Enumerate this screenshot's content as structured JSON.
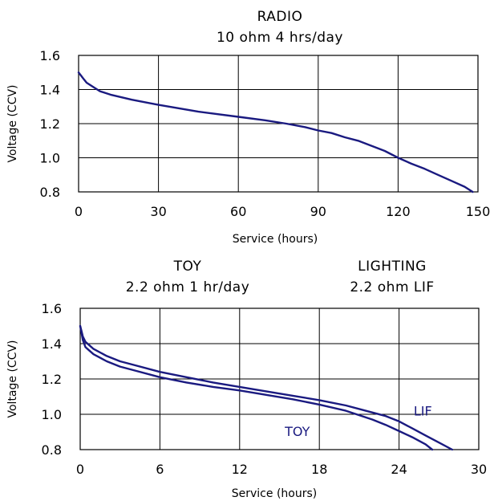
{
  "chart_data": [
    {
      "type": "line",
      "title_lines": [
        "RADIO",
        "10 ohm 4 hrs/day"
      ],
      "xlabel": "Service (hours)",
      "ylabel": "Voltage (CCV)",
      "xlim": [
        0,
        150
      ],
      "ylim": [
        0.8,
        1.6
      ],
      "xticks": [
        0,
        30,
        60,
        90,
        120,
        150
      ],
      "yticks": [
        0.8,
        1.0,
        1.2,
        1.4,
        1.6
      ],
      "ytick_labels": [
        "0.8",
        "1.0",
        "1.2",
        "1.4",
        "1.6"
      ],
      "grid": true,
      "line_color": "#1a1a80",
      "series": [
        {
          "x": [
            0,
            1,
            2,
            3,
            5,
            8,
            12,
            20,
            30,
            45,
            60,
            70,
            78,
            85,
            90,
            95,
            100,
            105,
            110,
            115,
            120,
            125,
            130,
            135,
            140,
            145,
            148
          ],
          "y": [
            1.5,
            1.48,
            1.46,
            1.44,
            1.42,
            1.39,
            1.37,
            1.34,
            1.31,
            1.27,
            1.24,
            1.22,
            1.2,
            1.18,
            1.16,
            1.145,
            1.12,
            1.1,
            1.07,
            1.04,
            1.0,
            0.965,
            0.935,
            0.9,
            0.865,
            0.83,
            0.8
          ]
        }
      ]
    },
    {
      "type": "line",
      "title_lines_left": [
        "TOY",
        "2.2 ohm 1 hr/day"
      ],
      "title_lines_right": [
        "LIGHTING",
        "2.2 ohm LIF"
      ],
      "xlabel": "Service (hours)",
      "ylabel": "Voltage (CCV)",
      "xlim": [
        0,
        30
      ],
      "ylim": [
        0.8,
        1.6
      ],
      "xticks": [
        0,
        6,
        12,
        18,
        24,
        30
      ],
      "yticks": [
        0.8,
        1.0,
        1.2,
        1.4,
        1.6
      ],
      "ytick_labels": [
        "0.8",
        "1.0",
        "1.2",
        "1.4",
        "1.6"
      ],
      "grid": true,
      "line_color": "#1a1a80",
      "series": [
        {
          "name": "LIF",
          "x": [
            0,
            0.1,
            0.2,
            0.4,
            0.7,
            1,
            2,
            3,
            4,
            6,
            8,
            10,
            12,
            14,
            16,
            18,
            20,
            22,
            23,
            24,
            25,
            26,
            27,
            28
          ],
          "y": [
            1.5,
            1.47,
            1.44,
            1.41,
            1.39,
            1.37,
            1.33,
            1.3,
            1.28,
            1.24,
            1.21,
            1.18,
            1.155,
            1.13,
            1.105,
            1.08,
            1.05,
            1.01,
            0.99,
            0.96,
            0.92,
            0.88,
            0.84,
            0.8
          ]
        },
        {
          "name": "TOY",
          "x": [
            0,
            0.1,
            0.2,
            0.4,
            0.7,
            1,
            2,
            3,
            4,
            6,
            8,
            10,
            12,
            14,
            16,
            18,
            20,
            21,
            22,
            23,
            24,
            25,
            26,
            26.5
          ],
          "y": [
            1.5,
            1.46,
            1.42,
            1.38,
            1.36,
            1.34,
            1.3,
            1.27,
            1.25,
            1.21,
            1.18,
            1.155,
            1.135,
            1.11,
            1.085,
            1.055,
            1.02,
            0.995,
            0.97,
            0.94,
            0.905,
            0.87,
            0.83,
            0.8
          ]
        }
      ],
      "annotations": [
        {
          "text": "LIF",
          "x": 25.1,
          "y": 1.02
        },
        {
          "text": "TOY",
          "x": 15.4,
          "y": 0.905
        }
      ]
    }
  ]
}
